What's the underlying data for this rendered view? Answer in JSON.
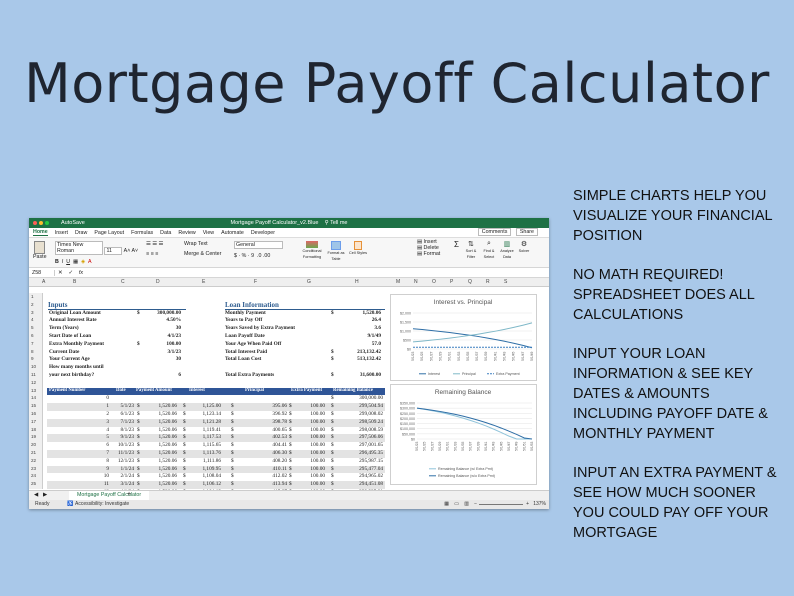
{
  "hero_title": "Mortgage Payoff Calculator",
  "features": [
    "Simple charts help you visualize your financial position",
    "No math required! Spreadsheet does all calculations",
    "Input your loan information & see key dates & amounts including payoff date & monthly payment",
    "Input an extra payment & see how much sooner you could pay off your mortgage"
  ],
  "window": {
    "autosave": "AutoSave",
    "doc_title": "Mortgage Payoff Calculator_v2.Blue",
    "tell_me": "Tell me",
    "colors": {
      "titlebar": "#1e7145",
      "table_header": "#2f5597",
      "section": "#2e5c8f"
    }
  },
  "ribbon_tabs": [
    "Home",
    "Insert",
    "Draw",
    "Page Layout",
    "Formulas",
    "Data",
    "Review",
    "View",
    "Automate",
    "Developer"
  ],
  "ribbon_right": [
    "Comments",
    "Share"
  ],
  "ribbon": {
    "paste": "Paste",
    "font": "Times New Roman",
    "size": "11",
    "wrap": "Wrap Text",
    "merge": "Merge & Center",
    "number_format": "General",
    "styles": [
      "Conditional Formatting",
      "Format as Table",
      "Cell Styles"
    ],
    "cells": [
      "Insert",
      "Delete",
      "Format"
    ],
    "editing": [
      "Sort & Filter",
      "Find & Select",
      "Analyze Data",
      "Solver"
    ]
  },
  "formula_bar": {
    "cell_ref": "Z58",
    "fx": "fx"
  },
  "columns": [
    "A",
    "B",
    "C",
    "D",
    "E",
    "F",
    "G",
    "H",
    "M",
    "N",
    "O",
    "P",
    "Q",
    "R",
    "S"
  ],
  "rows": [
    "1",
    "2",
    "3",
    "4",
    "5",
    "6",
    "7",
    "8",
    "9",
    "10",
    "11",
    "12",
    "13",
    "14",
    "15",
    "16",
    "17",
    "18",
    "19",
    "20",
    "21",
    "22",
    "23",
    "24",
    "25"
  ],
  "inputs": {
    "header": "Inputs",
    "items": [
      {
        "label": "Original Loan Amount",
        "cur": "$",
        "value": "300,000.00"
      },
      {
        "label": "Annual Interest Rate",
        "cur": "",
        "value": "4.50%"
      },
      {
        "label": "Term (Years)",
        "cur": "",
        "value": "30"
      },
      {
        "label": "Start Date of Loan",
        "cur": "",
        "value": "4/1/23"
      },
      {
        "label": "Extra Monthly Payment",
        "cur": "$",
        "value": "100.00"
      },
      {
        "label": "Current Date",
        "cur": "",
        "value": "3/1/23"
      },
      {
        "label": "Your Current Age",
        "cur": "",
        "value": "30"
      },
      {
        "label": "How many months until",
        "cur": "",
        "value": ""
      },
      {
        "label": "your next birthday?",
        "cur": "",
        "value": "6"
      }
    ]
  },
  "loan_info": {
    "header": "Loan Information",
    "items": [
      {
        "label": "Monthly Payment",
        "cur": "$",
        "value": "1,520.06"
      },
      {
        "label": "Years to Pay Off",
        "cur": "",
        "value": "26.4"
      },
      {
        "label": "Years Saved by Extra Payment",
        "cur": "",
        "value": "3.6"
      },
      {
        "label": "Loan Payoff Date",
        "cur": "",
        "value": "9/1/49"
      },
      {
        "label": "Your Age When Paid Off",
        "cur": "",
        "value": "57.0"
      },
      {
        "label": "Total Interest Paid",
        "cur": "$",
        "value": "213,132.42"
      },
      {
        "label": "Total Loan Cost",
        "cur": "$",
        "value": "513,132.42"
      },
      {
        "label": "",
        "cur": "",
        "value": ""
      },
      {
        "label": "Total Extra Payments",
        "cur": "$",
        "value": "31,600.00"
      }
    ]
  },
  "schedule": {
    "headers": [
      "Payment Number",
      "Date",
      "Payment Amount",
      "Interest",
      "Principal",
      "Extra Payment",
      "Remaining Balance"
    ],
    "rows": [
      [
        "0",
        "",
        "",
        "",
        "",
        "",
        "300,000.00"
      ],
      [
        "1",
        "5/1/23",
        "1,520.06",
        "1,125.00",
        "395.06",
        "100.00",
        "299,504.94"
      ],
      [
        "2",
        "6/1/23",
        "1,520.06",
        "1,123.14",
        "396.92",
        "100.00",
        "299,008.02"
      ],
      [
        "3",
        "7/1/23",
        "1,520.06",
        "1,121.28",
        "398.78",
        "100.00",
        "298,509.24"
      ],
      [
        "4",
        "8/1/23",
        "1,520.06",
        "1,119.41",
        "400.65",
        "100.00",
        "298,008.59"
      ],
      [
        "5",
        "9/1/23",
        "1,520.06",
        "1,117.53",
        "402.53",
        "100.00",
        "297,506.06"
      ],
      [
        "6",
        "10/1/23",
        "1,520.06",
        "1,115.65",
        "404.41",
        "100.00",
        "297,001.65"
      ],
      [
        "7",
        "11/1/23",
        "1,520.06",
        "1,113.76",
        "406.30",
        "100.00",
        "296,495.35"
      ],
      [
        "8",
        "12/1/23",
        "1,520.06",
        "1,111.86",
        "408.20",
        "100.00",
        "295,987.15"
      ],
      [
        "9",
        "1/1/24",
        "1,520.06",
        "1,109.95",
        "410.11",
        "100.00",
        "295,477.04"
      ],
      [
        "10",
        "2/1/24",
        "1,520.06",
        "1,108.04",
        "412.02",
        "100.00",
        "294,965.02"
      ],
      [
        "11",
        "3/1/24",
        "1,520.06",
        "1,106.12",
        "413.94",
        "100.00",
        "294,451.08"
      ],
      [
        "12",
        "4/1/24",
        "1,520.06",
        "1,104.19",
        "415.87",
        "100.00",
        "293,935.21"
      ]
    ]
  },
  "chart_data": [
    {
      "type": "line",
      "title": "Interest vs. Principal",
      "y_ticks": [
        "$2,000",
        "$1,500",
        "$1,000",
        "$500",
        "$0"
      ],
      "ylim": [
        0,
        2000
      ],
      "x": [
        "5/1/23",
        "5/1/25",
        "5/1/27",
        "5/1/29",
        "5/1/31",
        "5/1/33",
        "5/1/35",
        "5/1/37",
        "5/1/39",
        "5/1/41",
        "5/1/43",
        "5/1/45",
        "5/1/47",
        "5/1/49"
      ],
      "series": [
        {
          "name": "Interest",
          "values": [
            1125,
            1080,
            1030,
            975,
            915,
            850,
            780,
            705,
            620,
            530,
            430,
            320,
            200,
            70
          ]
        },
        {
          "name": "Principal",
          "values": [
            395,
            440,
            490,
            545,
            605,
            670,
            740,
            815,
            900,
            990,
            1090,
            1200,
            1320,
            1450
          ]
        },
        {
          "name": "Extra Payment",
          "values": [
            100,
            100,
            100,
            100,
            100,
            100,
            100,
            100,
            100,
            100,
            100,
            100,
            100,
            100
          ]
        }
      ],
      "legend_position": "bottom"
    },
    {
      "type": "line",
      "title": "Remaining Balance",
      "y_ticks": [
        "$350,000",
        "$300,000",
        "$250,000",
        "$200,000",
        "$150,000",
        "$100,000",
        "$50,000",
        "$0"
      ],
      "ylim": [
        0,
        350000
      ],
      "x": [
        "5/1/23",
        "5/1/25",
        "5/1/27",
        "5/1/29",
        "5/1/31",
        "5/1/33",
        "5/1/35",
        "5/1/37",
        "5/1/39",
        "5/1/41",
        "5/1/43",
        "5/1/45",
        "5/1/47",
        "5/1/49",
        "5/1/51",
        "5/1/53"
      ],
      "series": [
        {
          "name": "Remaining Balance (w/ Extra Pmt)",
          "values": [
            300000,
            288000,
            275000,
            260000,
            243000,
            224000,
            203000,
            180000,
            155000,
            127000,
            96000,
            63000,
            28000,
            0,
            0,
            0
          ]
        },
        {
          "name": "Remaining Balance (w/o Extra Pmt)",
          "values": [
            300000,
            290000,
            280000,
            268000,
            254000,
            239000,
            222000,
            203000,
            182000,
            159000,
            134000,
            106000,
            76000,
            44000,
            10000,
            0
          ]
        }
      ],
      "legend_position": "bottom"
    }
  ],
  "sheet_tab": "Mortgage Payoff Calculator",
  "status": {
    "ready": "Ready",
    "accessibility": "Accessibility: Investigate",
    "zoom": "137%"
  }
}
